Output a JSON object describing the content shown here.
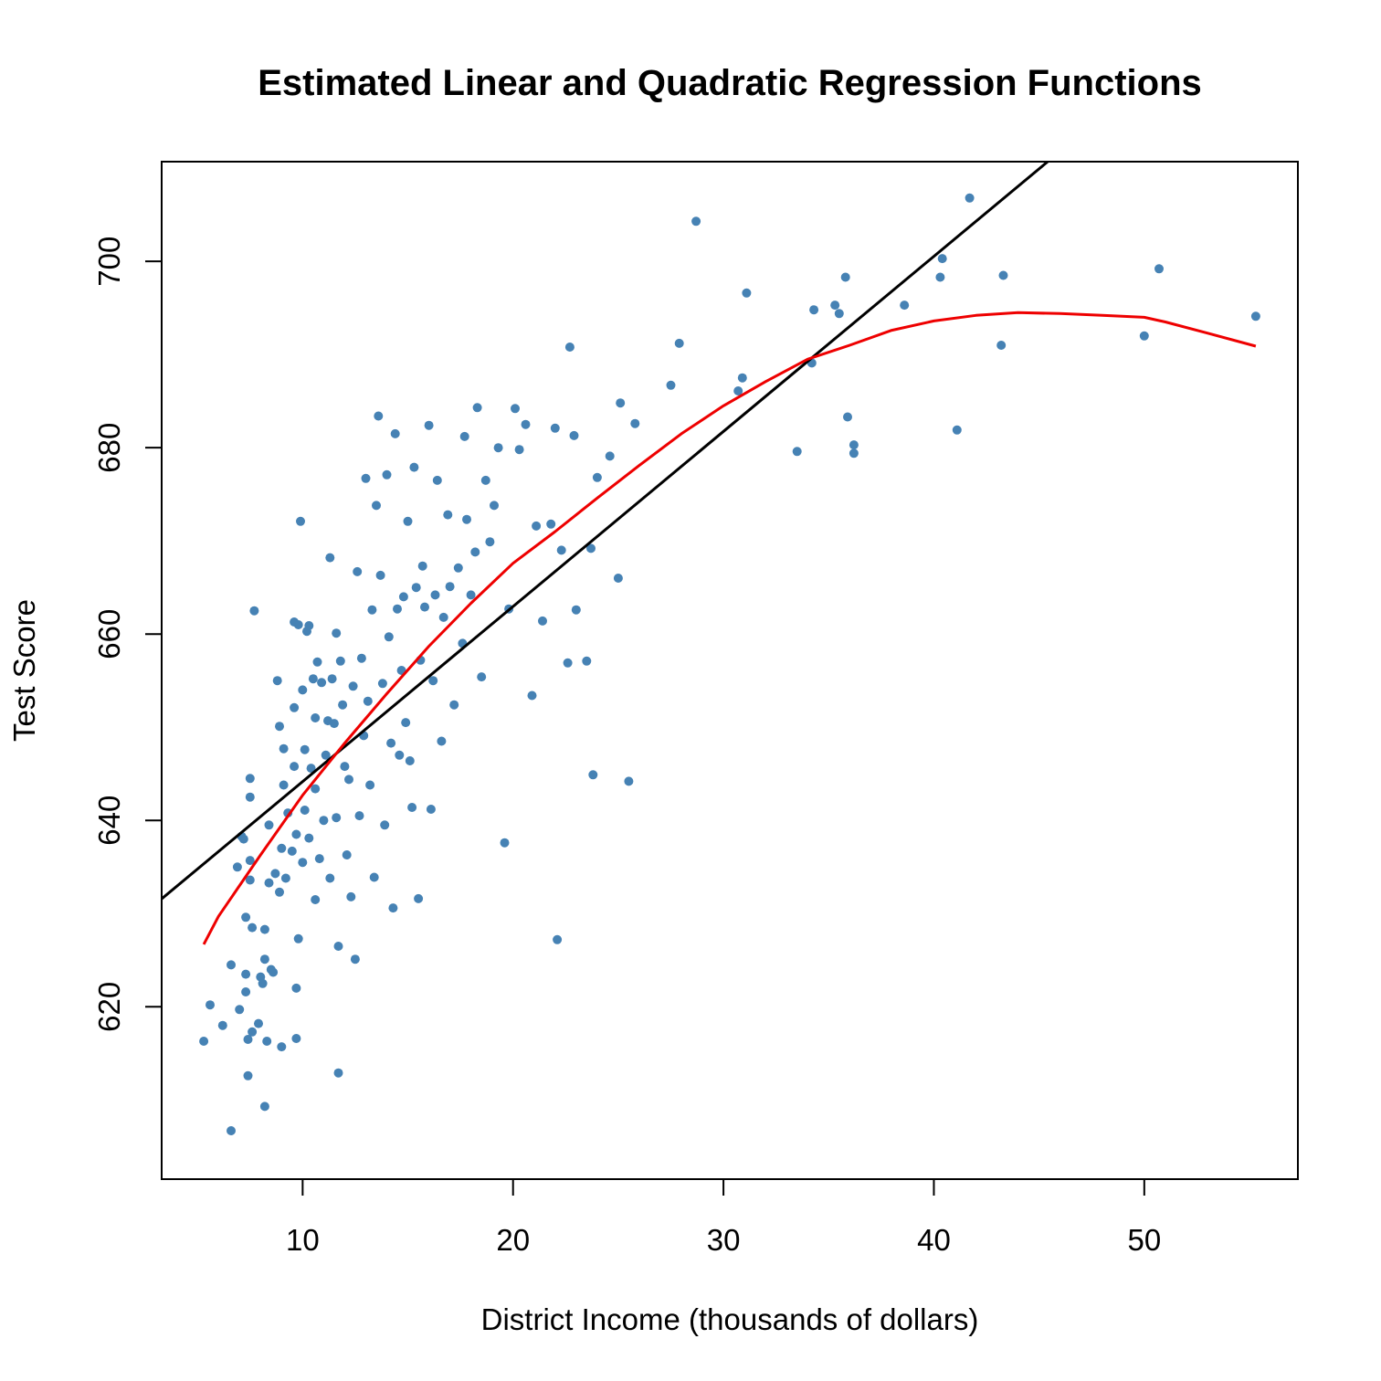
{
  "chart_data": {
    "type": "scatter",
    "title": "Estimated Linear and Quadratic Regression Functions",
    "xlabel": "District Income (thousands of dollars)",
    "ylabel": "Test Score",
    "xlim": [
      3.3,
      57.3
    ],
    "ylim": [
      601.5,
      710.7
    ],
    "x_ticks": [
      10,
      20,
      30,
      40,
      50
    ],
    "y_ticks": [
      620,
      640,
      660,
      680,
      700
    ],
    "grid": false,
    "colors": {
      "points": "#4682b4",
      "linear": "#000000",
      "quadratic": "#ee0000"
    },
    "linear_fit": {
      "intercept": 625.38,
      "slope": 1.879,
      "x_range": [
        3.3,
        45.7
      ]
    },
    "quadratic_fit": {
      "x": [
        5.3,
        6,
        8,
        10,
        12,
        14,
        16,
        18,
        20,
        22,
        24,
        26,
        28,
        30,
        32,
        34,
        36,
        38,
        40,
        42,
        44,
        46,
        48,
        50,
        51,
        53,
        55.3
      ],
      "y": [
        626.7,
        629.7,
        636.3,
        642.7,
        648.3,
        653.6,
        658.7,
        663.3,
        667.6,
        671.0,
        674.6,
        678.1,
        681.5,
        684.5,
        687.1,
        689.5,
        691.0,
        692.6,
        693.6,
        694.2,
        694.5,
        694.4,
        694.2,
        694.0,
        693.5,
        692.3,
        690.9
      ]
    },
    "points": [
      [
        5.3,
        616.3
      ],
      [
        5.6,
        620.2
      ],
      [
        6.2,
        618.0
      ],
      [
        6.6,
        606.7
      ],
      [
        6.6,
        624.5
      ],
      [
        6.9,
        635.0
      ],
      [
        7.0,
        619.7
      ],
      [
        7.1,
        638.3
      ],
      [
        7.2,
        638.0
      ],
      [
        7.3,
        629.6
      ],
      [
        7.3,
        621.6
      ],
      [
        7.3,
        623.5
      ],
      [
        7.4,
        616.5
      ],
      [
        7.4,
        612.6
      ],
      [
        7.5,
        644.5
      ],
      [
        7.5,
        642.5
      ],
      [
        7.5,
        635.7
      ],
      [
        7.5,
        633.6
      ],
      [
        7.6,
        617.3
      ],
      [
        7.6,
        628.5
      ],
      [
        7.7,
        662.5
      ],
      [
        7.9,
        618.2
      ],
      [
        8.0,
        623.2
      ],
      [
        8.1,
        622.5
      ],
      [
        8.2,
        625.1
      ],
      [
        8.2,
        628.3
      ],
      [
        8.2,
        609.3
      ],
      [
        8.3,
        616.3
      ],
      [
        8.4,
        639.5
      ],
      [
        8.4,
        633.3
      ],
      [
        8.5,
        624.0
      ],
      [
        8.6,
        623.7
      ],
      [
        8.7,
        634.3
      ],
      [
        8.8,
        655.0
      ],
      [
        8.9,
        650.1
      ],
      [
        8.9,
        632.3
      ],
      [
        9.0,
        615.7
      ],
      [
        9.0,
        637.0
      ],
      [
        9.1,
        647.7
      ],
      [
        9.1,
        643.8
      ],
      [
        9.2,
        633.8
      ],
      [
        9.3,
        640.8
      ],
      [
        9.5,
        636.7
      ],
      [
        9.6,
        661.3
      ],
      [
        9.6,
        652.1
      ],
      [
        9.6,
        645.8
      ],
      [
        9.7,
        638.5
      ],
      [
        9.7,
        622.0
      ],
      [
        9.7,
        616.6
      ],
      [
        9.8,
        661.0
      ],
      [
        9.8,
        627.3
      ],
      [
        9.9,
        672.1
      ],
      [
        10.0,
        654.0
      ],
      [
        10.0,
        635.5
      ],
      [
        10.1,
        647.6
      ],
      [
        10.1,
        641.1
      ],
      [
        10.2,
        660.3
      ],
      [
        10.3,
        660.9
      ],
      [
        10.3,
        638.1
      ],
      [
        10.4,
        645.6
      ],
      [
        10.5,
        655.2
      ],
      [
        10.6,
        643.4
      ],
      [
        10.6,
        631.5
      ],
      [
        10.6,
        651.0
      ],
      [
        10.7,
        657.0
      ],
      [
        10.8,
        635.9
      ],
      [
        10.9,
        654.8
      ],
      [
        11.0,
        640.0
      ],
      [
        11.1,
        647.0
      ],
      [
        11.2,
        650.7
      ],
      [
        11.3,
        668.2
      ],
      [
        11.3,
        633.8
      ],
      [
        11.4,
        655.2
      ],
      [
        11.5,
        650.4
      ],
      [
        11.6,
        660.1
      ],
      [
        11.6,
        640.3
      ],
      [
        11.7,
        626.5
      ],
      [
        11.7,
        612.9
      ],
      [
        11.8,
        657.1
      ],
      [
        11.9,
        652.4
      ],
      [
        12.0,
        645.8
      ],
      [
        12.1,
        636.3
      ],
      [
        12.2,
        644.4
      ],
      [
        12.3,
        631.8
      ],
      [
        12.4,
        654.4
      ],
      [
        12.5,
        625.1
      ],
      [
        12.6,
        666.7
      ],
      [
        12.7,
        640.5
      ],
      [
        12.8,
        657.4
      ],
      [
        12.9,
        649.1
      ],
      [
        13.0,
        676.7
      ],
      [
        13.1,
        652.8
      ],
      [
        13.2,
        643.8
      ],
      [
        13.3,
        662.6
      ],
      [
        13.4,
        633.9
      ],
      [
        13.5,
        673.8
      ],
      [
        13.6,
        683.4
      ],
      [
        13.7,
        666.3
      ],
      [
        13.8,
        654.7
      ],
      [
        13.9,
        639.5
      ],
      [
        14.0,
        677.1
      ],
      [
        14.1,
        659.7
      ],
      [
        14.2,
        648.3
      ],
      [
        14.3,
        630.6
      ],
      [
        14.4,
        681.5
      ],
      [
        14.5,
        662.7
      ],
      [
        14.6,
        647.0
      ],
      [
        14.7,
        656.1
      ],
      [
        14.8,
        664.0
      ],
      [
        14.9,
        650.5
      ],
      [
        15.0,
        672.1
      ],
      [
        15.1,
        646.4
      ],
      [
        15.2,
        641.4
      ],
      [
        15.3,
        677.9
      ],
      [
        15.4,
        665.0
      ],
      [
        15.5,
        631.6
      ],
      [
        15.6,
        657.2
      ],
      [
        15.7,
        667.3
      ],
      [
        15.8,
        662.9
      ],
      [
        16.0,
        682.4
      ],
      [
        16.1,
        641.2
      ],
      [
        16.2,
        655.0
      ],
      [
        16.3,
        664.2
      ],
      [
        16.4,
        676.5
      ],
      [
        16.6,
        648.5
      ],
      [
        16.7,
        661.8
      ],
      [
        16.9,
        672.8
      ],
      [
        17.0,
        665.1
      ],
      [
        17.2,
        652.4
      ],
      [
        17.4,
        667.1
      ],
      [
        17.6,
        659.0
      ],
      [
        17.7,
        681.2
      ],
      [
        17.8,
        672.3
      ],
      [
        18.0,
        664.2
      ],
      [
        18.2,
        668.8
      ],
      [
        18.3,
        684.3
      ],
      [
        18.5,
        655.4
      ],
      [
        18.7,
        676.5
      ],
      [
        18.9,
        669.9
      ],
      [
        19.1,
        673.8
      ],
      [
        19.3,
        680.0
      ],
      [
        19.6,
        637.6
      ],
      [
        19.8,
        662.7
      ],
      [
        20.1,
        684.2
      ],
      [
        20.3,
        679.8
      ],
      [
        20.6,
        682.5
      ],
      [
        20.9,
        653.4
      ],
      [
        21.1,
        671.6
      ],
      [
        21.4,
        661.4
      ],
      [
        21.8,
        671.8
      ],
      [
        22.0,
        682.1
      ],
      [
        22.1,
        627.2
      ],
      [
        22.3,
        669.0
      ],
      [
        22.6,
        656.9
      ],
      [
        22.7,
        690.8
      ],
      [
        22.9,
        681.3
      ],
      [
        23.0,
        662.6
      ],
      [
        23.5,
        657.1
      ],
      [
        23.7,
        669.2
      ],
      [
        23.8,
        644.9
      ],
      [
        24.0,
        676.8
      ],
      [
        24.6,
        679.1
      ],
      [
        25.0,
        666.0
      ],
      [
        25.1,
        684.8
      ],
      [
        25.5,
        644.2
      ],
      [
        25.8,
        682.6
      ],
      [
        27.5,
        686.7
      ],
      [
        27.9,
        691.2
      ],
      [
        28.7,
        704.3
      ],
      [
        30.7,
        686.1
      ],
      [
        30.9,
        687.5
      ],
      [
        31.1,
        696.6
      ],
      [
        33.5,
        679.6
      ],
      [
        34.2,
        689.1
      ],
      [
        34.3,
        694.8
      ],
      [
        35.3,
        695.3
      ],
      [
        35.5,
        694.4
      ],
      [
        35.8,
        698.3
      ],
      [
        35.9,
        683.3
      ],
      [
        36.2,
        680.3
      ],
      [
        36.2,
        679.4
      ],
      [
        38.6,
        695.3
      ],
      [
        40.3,
        698.3
      ],
      [
        40.4,
        700.3
      ],
      [
        41.1,
        681.9
      ],
      [
        41.7,
        706.8
      ],
      [
        43.2,
        691.0
      ],
      [
        43.3,
        698.5
      ],
      [
        50.0,
        692.0
      ],
      [
        50.7,
        699.2
      ],
      [
        55.3,
        694.1
      ]
    ]
  }
}
